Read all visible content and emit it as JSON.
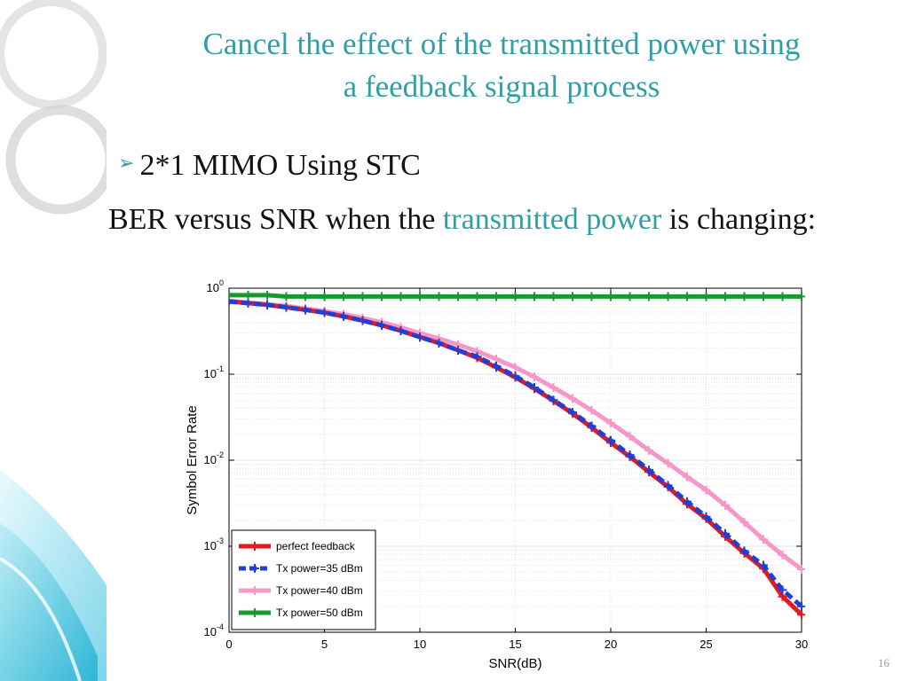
{
  "slide": {
    "title_line1": "Cancel the effect of the transmitted power using",
    "title_line2": "a feedback signal process",
    "bullet": "2*1 MIMO Using STC",
    "desc_part1": "BER versus SNR when the ",
    "desc_highlight": "transmitted power",
    "desc_part2": " is changing:",
    "slide_number": "16",
    "accent_color": "#2e9fa5"
  },
  "chart_data": {
    "type": "line",
    "xlabel": "SNR(dB)",
    "ylabel": "Symbol Error Rate",
    "xlim": [
      0,
      30
    ],
    "ylim": [
      0.0001,
      1
    ],
    "yscale": "log",
    "xticks": [
      0,
      5,
      10,
      15,
      20,
      25,
      30
    ],
    "yticks": [
      1,
      0.1,
      0.01,
      0.001,
      0.0001
    ],
    "ytick_labels": [
      {
        "base": "10",
        "exp": "0"
      },
      {
        "base": "10",
        "exp": "-1"
      },
      {
        "base": "10",
        "exp": "-2"
      },
      {
        "base": "10",
        "exp": "-3"
      },
      {
        "base": "10",
        "exp": "-4"
      }
    ],
    "grid": true,
    "legend_position": "bottom-left",
    "x": [
      0,
      1,
      2,
      3,
      4,
      5,
      6,
      7,
      8,
      9,
      10,
      11,
      12,
      13,
      14,
      15,
      16,
      17,
      18,
      19,
      20,
      21,
      22,
      23,
      24,
      25,
      26,
      27,
      28,
      29,
      30
    ],
    "series": [
      {
        "name": "perfect feedback",
        "color": "#e41a1c",
        "style": "solid",
        "values": [
          0.7,
          0.67,
          0.64,
          0.6,
          0.56,
          0.52,
          0.47,
          0.42,
          0.37,
          0.32,
          0.27,
          0.23,
          0.19,
          0.155,
          0.12,
          0.092,
          0.068,
          0.049,
          0.035,
          0.024,
          0.016,
          0.011,
          0.0073,
          0.0049,
          0.0031,
          0.0021,
          0.0013,
          0.00083,
          0.00055,
          0.00026,
          0.00016
        ]
      },
      {
        "name": "Tx power=35 dBm",
        "color": "#1f3fd6",
        "style": "dashed",
        "values": [
          0.7,
          0.67,
          0.64,
          0.6,
          0.56,
          0.52,
          0.47,
          0.42,
          0.37,
          0.32,
          0.27,
          0.23,
          0.19,
          0.16,
          0.124,
          0.095,
          0.07,
          0.05,
          0.036,
          0.025,
          0.017,
          0.0115,
          0.0077,
          0.0051,
          0.0033,
          0.0022,
          0.0014,
          0.00088,
          0.0006,
          0.00031,
          0.0002
        ]
      },
      {
        "name": "Tx power=40 dBm",
        "color": "#f598c9",
        "style": "solid",
        "values": [
          0.71,
          0.68,
          0.65,
          0.62,
          0.58,
          0.54,
          0.5,
          0.45,
          0.4,
          0.35,
          0.3,
          0.26,
          0.22,
          0.185,
          0.15,
          0.12,
          0.093,
          0.07,
          0.052,
          0.038,
          0.027,
          0.019,
          0.013,
          0.0092,
          0.0064,
          0.0045,
          0.003,
          0.0019,
          0.0012,
          0.00079,
          0.00054
        ]
      },
      {
        "name": "Tx power=50 dBm",
        "color": "#169a2c",
        "style": "solid",
        "values": [
          0.83,
          0.83,
          0.83,
          0.8,
          0.8,
          0.8,
          0.8,
          0.8,
          0.8,
          0.8,
          0.8,
          0.8,
          0.8,
          0.8,
          0.8,
          0.8,
          0.8,
          0.8,
          0.8,
          0.8,
          0.8,
          0.8,
          0.8,
          0.8,
          0.8,
          0.8,
          0.8,
          0.8,
          0.8,
          0.8,
          0.8
        ]
      }
    ]
  }
}
